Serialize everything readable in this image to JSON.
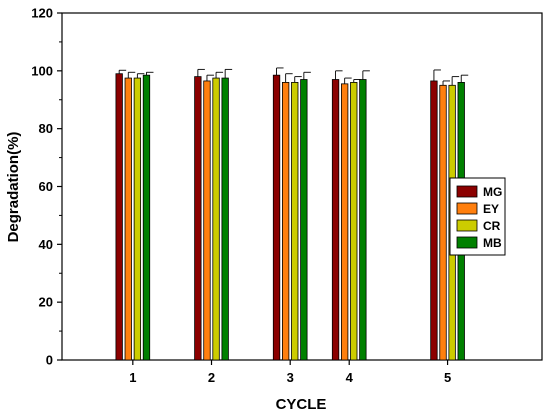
{
  "chart_data": {
    "type": "bar",
    "title": "",
    "xlabel": "CYCLE",
    "ylabel": "Degradation(%)",
    "ylim": [
      0,
      120
    ],
    "yticks": [
      0,
      20,
      40,
      60,
      80,
      100,
      120
    ],
    "grid": false,
    "legend_position": "right",
    "categories": [
      "1",
      "2",
      "3",
      "4",
      "5"
    ],
    "x": [
      1,
      2,
      3,
      3.75,
      5
    ],
    "xlim": [
      0.1,
      6.2
    ],
    "series": [
      {
        "name": "MG",
        "color": "#8b0000",
        "values": [
          99.0,
          98.0,
          98.5,
          97.0,
          96.5
        ],
        "errors": [
          1.2,
          2.5,
          2.5,
          3.0,
          3.8
        ]
      },
      {
        "name": "EY",
        "color": "#ff7f0e",
        "values": [
          97.5,
          96.5,
          96.0,
          95.5,
          95.0
        ],
        "errors": [
          2.0,
          2.0,
          3.0,
          2.0,
          1.5
        ]
      },
      {
        "name": "CR",
        "color": "#cccc00",
        "values": [
          97.5,
          97.5,
          96.0,
          96.0,
          95.0
        ],
        "errors": [
          1.5,
          2.0,
          2.0,
          1.0,
          3.0
        ]
      },
      {
        "name": "MB",
        "color": "#008000",
        "values": [
          98.5,
          97.5,
          97.0,
          97.0,
          96.0
        ],
        "errors": [
          1.0,
          3.0,
          2.5,
          3.0,
          2.5
        ]
      }
    ]
  }
}
